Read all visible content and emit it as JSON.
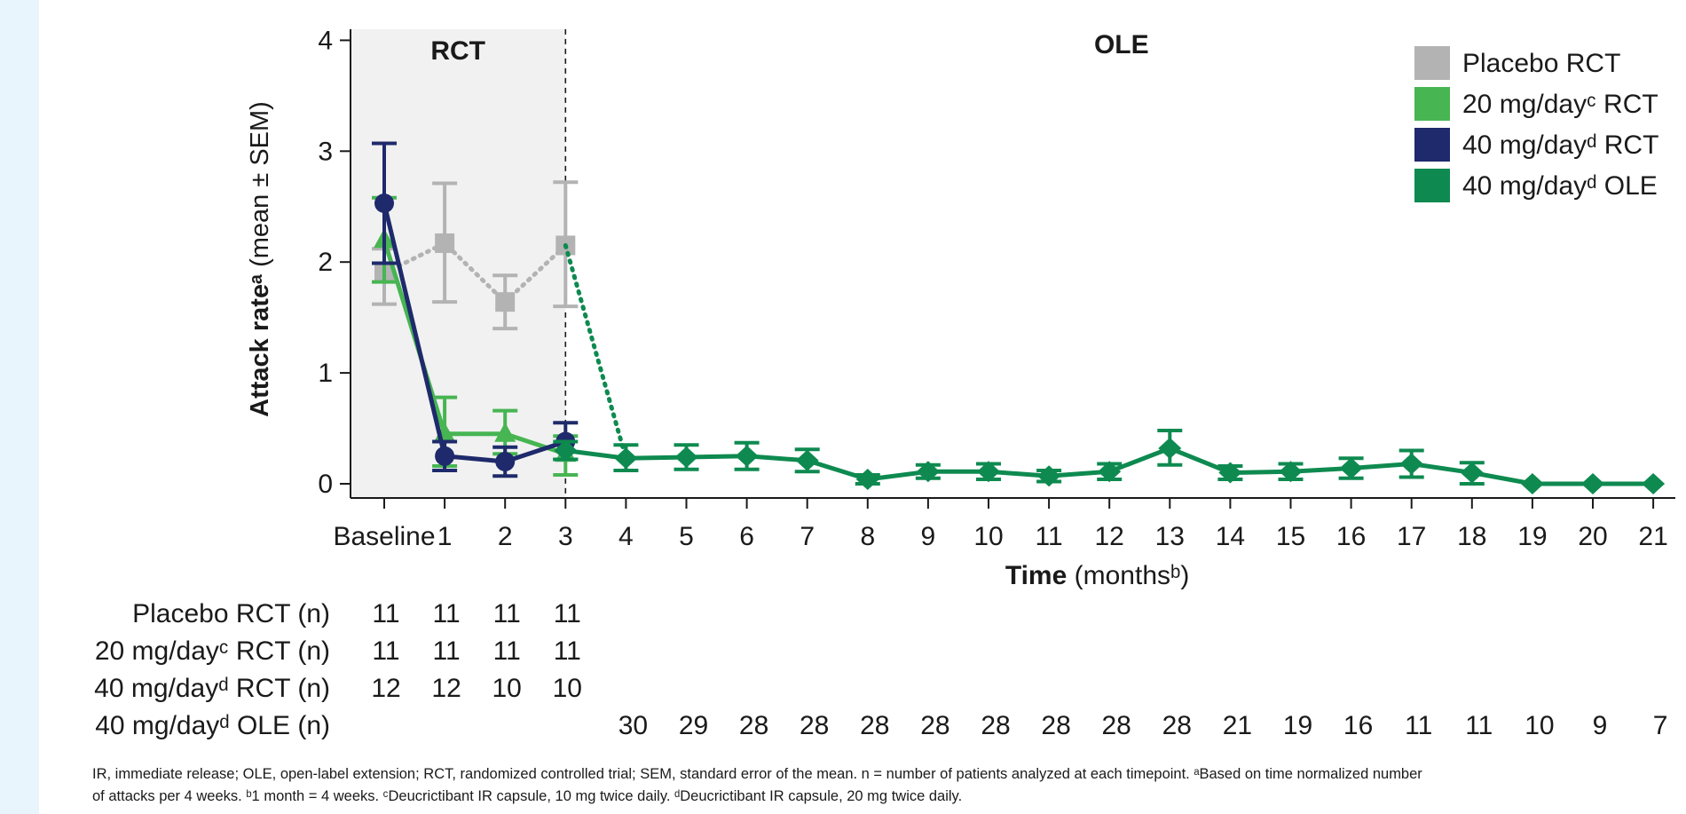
{
  "chart_data": {
    "type": "line",
    "title": "",
    "ylabel": "Attack rateᵃ (mean ± SEM)",
    "xlabel_bold": "Time",
    "xlabel_rest": " (monthsᵇ)",
    "x_ticks": [
      "Baseline",
      "1",
      "2",
      "3",
      "4",
      "5",
      "6",
      "7",
      "8",
      "9",
      "10",
      "11",
      "12",
      "13",
      "14",
      "15",
      "16",
      "17",
      "18",
      "19",
      "20",
      "21"
    ],
    "y_ticks": [
      "0",
      "1",
      "2",
      "3",
      "4"
    ],
    "ylim": [
      0,
      4.1
    ],
    "xlim": [
      -0.6,
      21.3
    ],
    "legend_position": "top-right",
    "period_labels": {
      "rct": "RCT",
      "ole": "OLE",
      "rct_end_x": 3
    },
    "series": [
      {
        "name": "Placebo RCT",
        "color": "#b3b3b3",
        "marker": "square",
        "line": "dotted",
        "x": [
          0,
          1,
          2,
          3
        ],
        "y": [
          1.9,
          2.17,
          1.64,
          2.15
        ],
        "err_low": [
          1.62,
          1.64,
          1.4,
          1.6
        ],
        "err_high": [
          2.12,
          2.71,
          1.88,
          2.72
        ]
      },
      {
        "name": "20 mg/dayᶜ RCT",
        "color": "#47b552",
        "marker": "triangle",
        "line": "solid",
        "x": [
          0,
          1,
          2,
          3
        ],
        "y": [
          2.2,
          0.45,
          0.45,
          0.27
        ],
        "err_low": [
          1.82,
          0.16,
          0.27,
          0.08
        ],
        "err_high": [
          2.58,
          0.78,
          0.66,
          0.43
        ]
      },
      {
        "name": "40 mg/dayᵈ RCT",
        "color": "#1e2a6b",
        "marker": "circle",
        "line": "solid",
        "x": [
          0,
          1,
          2,
          3
        ],
        "y": [
          2.53,
          0.25,
          0.2,
          0.38
        ],
        "err_low": [
          1.99,
          0.12,
          0.07,
          0.22
        ],
        "err_high": [
          3.07,
          0.38,
          0.33,
          0.55
        ]
      },
      {
        "name": "40 mg/dayᵈ OLE",
        "color": "#0e8a50",
        "marker": "diamond",
        "line": "solid",
        "x": [
          3,
          4,
          5,
          6,
          7,
          8,
          9,
          10,
          11,
          12,
          13,
          14,
          15,
          16,
          17,
          18,
          19,
          20,
          21
        ],
        "y": [
          0.3,
          0.23,
          0.24,
          0.25,
          0.21,
          0.04,
          0.11,
          0.11,
          0.07,
          0.11,
          0.32,
          0.1,
          0.11,
          0.14,
          0.18,
          0.1,
          0.0,
          0.0,
          0.0
        ],
        "err_low": [
          0.22,
          0.12,
          0.13,
          0.13,
          0.11,
          0.0,
          0.05,
          0.04,
          0.02,
          0.04,
          0.17,
          0.04,
          0.04,
          0.05,
          0.06,
          0.0,
          0.0,
          0.0,
          0.0
        ],
        "err_high": [
          0.38,
          0.35,
          0.35,
          0.37,
          0.31,
          0.08,
          0.17,
          0.18,
          0.12,
          0.18,
          0.48,
          0.16,
          0.18,
          0.23,
          0.3,
          0.19,
          0.0,
          0.0,
          0.0
        ],
        "bridge_from": {
          "x": 3,
          "y": 2.15
        }
      }
    ]
  },
  "n_table": {
    "rows": [
      {
        "label": "Placebo RCT (n)",
        "color": "#b3b3b3",
        "values": [
          [
            "0",
            "11"
          ],
          [
            "1",
            "11"
          ],
          [
            "2",
            "11"
          ],
          [
            "3",
            "11"
          ]
        ]
      },
      {
        "label": "20 mg/dayᶜ RCT (n)",
        "color": "#47b552",
        "values": [
          [
            "0",
            "11"
          ],
          [
            "1",
            "11"
          ],
          [
            "2",
            "11"
          ],
          [
            "3",
            "11"
          ]
        ]
      },
      {
        "label": "40 mg/dayᵈ RCT (n)",
        "color": "#1e2a6b",
        "values": [
          [
            "0",
            "12"
          ],
          [
            "1",
            "12"
          ],
          [
            "2",
            "10"
          ],
          [
            "3",
            "10"
          ]
        ]
      },
      {
        "label": "40 mg/dayᵈ OLE (n)",
        "color": "#0e8a50",
        "values": [
          [
            "4",
            "30"
          ],
          [
            "5",
            "29"
          ],
          [
            "6",
            "28"
          ],
          [
            "7",
            "28"
          ],
          [
            "8",
            "28"
          ],
          [
            "9",
            "28"
          ],
          [
            "10",
            "28"
          ],
          [
            "11",
            "28"
          ],
          [
            "12",
            "28"
          ],
          [
            "13",
            "28"
          ],
          [
            "14",
            "21"
          ],
          [
            "15",
            "19"
          ],
          [
            "16",
            "16"
          ],
          [
            "17",
            "11"
          ],
          [
            "18",
            "11"
          ],
          [
            "19",
            "10"
          ],
          [
            "20",
            "9"
          ],
          [
            "21",
            "7"
          ]
        ]
      }
    ]
  },
  "footnote": "IR, immediate release; OLE, open-label extension; RCT, randomized controlled trial; SEM, standard error of the mean. n = number of patients analyzed at each timepoint. ᵃBased on time normalized number\nof attacks per 4 weeks. ᵇ1 month = 4 weeks. ᶜDeucrictibant IR capsule, 10 mg twice daily. ᵈDeucrictibant IR capsule, 20 mg twice daily.",
  "colors": {
    "rct_shade": "#f1f1f1",
    "axis": "#1a1a1a",
    "side_strip": "#e9f5fc"
  }
}
